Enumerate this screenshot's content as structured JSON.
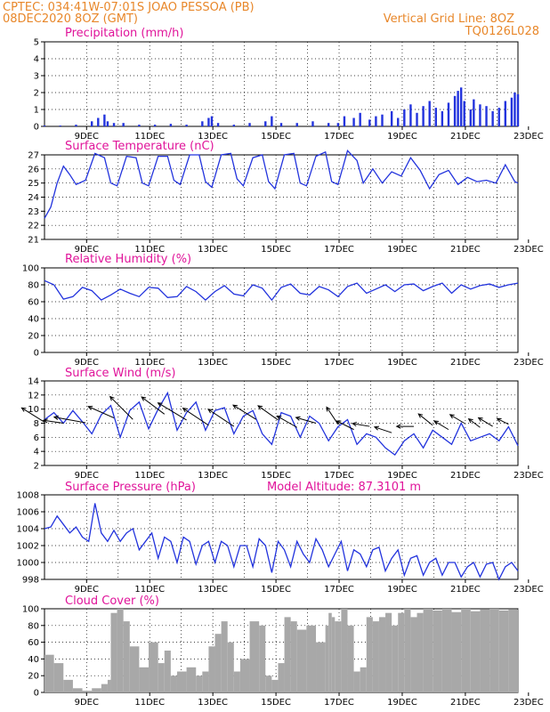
{
  "header": {
    "line1_left": "CPTEC:   034:41W-07:01S   JOAO PESSOA (PB)",
    "line2_left": "08DEC2020 8OZ (GMT)",
    "line1_right": "Vertical Grid Line: 8OZ",
    "line2_right": "TQ0126L028"
  },
  "colors": {
    "header": "#e8872a",
    "title": "#e0149a",
    "line": "#2233dd",
    "cloud": "#a8a8a8"
  },
  "x_labels": [
    "9DEC",
    "11DEC",
    "13DEC",
    "15DEC",
    "17DEC",
    "19DEC",
    "21DEC",
    "23DEC"
  ],
  "chart_data": [
    {
      "type": "bar",
      "title": "Precipitation (mm/h)",
      "ylim": [
        0,
        5
      ],
      "yticks": [
        "0",
        "1",
        "2",
        "3",
        "4",
        "5"
      ],
      "x_range_days": [
        8.0,
        23.0
      ],
      "x": [
        8.0,
        8.5,
        9.0,
        9.5,
        9.7,
        9.9,
        10.0,
        10.2,
        10.5,
        11.0,
        11.5,
        12.0,
        12.5,
        13.0,
        13.2,
        13.3,
        13.5,
        14.0,
        14.5,
        15.0,
        15.2,
        15.5,
        16.0,
        16.5,
        17.0,
        17.3,
        17.5,
        17.8,
        18.0,
        18.3,
        18.5,
        18.7,
        19.0,
        19.2,
        19.4,
        19.6,
        19.8,
        20.0,
        20.2,
        20.4,
        20.6,
        20.8,
        21.0,
        21.1,
        21.2,
        21.3,
        21.5,
        21.6,
        21.8,
        22.0,
        22.2,
        22.4,
        22.6,
        22.8,
        22.9,
        23.0
      ],
      "values": [
        0.05,
        0.05,
        0.1,
        0.3,
        0.5,
        0.7,
        0.3,
        0.2,
        0.2,
        0.1,
        0.1,
        0.15,
        0.1,
        0.3,
        0.5,
        0.6,
        0.2,
        0.1,
        0.2,
        0.3,
        0.6,
        0.2,
        0.2,
        0.3,
        0.2,
        0.2,
        0.6,
        0.5,
        0.8,
        0.4,
        0.6,
        0.7,
        0.9,
        0.5,
        1.0,
        1.3,
        0.8,
        1.2,
        1.5,
        1.1,
        0.9,
        1.4,
        1.8,
        2.1,
        2.3,
        1.5,
        1.0,
        1.6,
        1.3,
        1.2,
        0.9,
        1.1,
        1.5,
        1.7,
        2.0,
        1.9
      ]
    },
    {
      "type": "line",
      "title": "Surface Temperature (nC)",
      "ylim": [
        21,
        27
      ],
      "yticks": [
        "21",
        "22",
        "23",
        "24",
        "25",
        "26",
        "27"
      ],
      "x": [
        8.0,
        8.2,
        8.4,
        8.6,
        8.8,
        9.0,
        9.3,
        9.6,
        9.9,
        10.1,
        10.3,
        10.6,
        10.9,
        11.1,
        11.3,
        11.6,
        11.9,
        12.1,
        12.3,
        12.6,
        12.9,
        13.1,
        13.3,
        13.6,
        13.9,
        14.1,
        14.3,
        14.6,
        14.9,
        15.1,
        15.3,
        15.6,
        15.9,
        16.1,
        16.3,
        16.6,
        16.9,
        17.1,
        17.3,
        17.6,
        17.9,
        18.1,
        18.4,
        18.7,
        19.0,
        19.3,
        19.6,
        19.9,
        20.2,
        20.5,
        20.8,
        21.1,
        21.4,
        21.7,
        22.0,
        22.3,
        22.6,
        22.9,
        23.0
      ],
      "values": [
        22.5,
        23.3,
        25.0,
        26.2,
        25.6,
        24.9,
        25.2,
        27.1,
        26.8,
        25.0,
        24.8,
        26.9,
        26.8,
        25.0,
        24.8,
        26.9,
        26.9,
        25.2,
        24.9,
        27.0,
        27.0,
        25.1,
        24.7,
        27.0,
        27.1,
        25.3,
        24.8,
        26.8,
        27.0,
        25.1,
        24.6,
        27.0,
        27.1,
        25.0,
        24.8,
        26.9,
        27.2,
        25.1,
        24.9,
        27.3,
        26.6,
        25.0,
        26.0,
        25.0,
        25.8,
        25.5,
        26.8,
        25.9,
        24.6,
        25.6,
        25.9,
        24.9,
        25.4,
        25.1,
        25.2,
        25.0,
        26.3,
        25.1,
        25.0
      ]
    },
    {
      "type": "line",
      "title": "Relative Humidity (%)",
      "ylim": [
        0,
        100
      ],
      "yticks": [
        "0",
        "20",
        "40",
        "60",
        "80",
        "100"
      ],
      "x": [
        8.0,
        8.3,
        8.6,
        8.9,
        9.2,
        9.5,
        9.8,
        10.1,
        10.4,
        10.7,
        11.0,
        11.3,
        11.6,
        11.9,
        12.2,
        12.5,
        12.8,
        13.1,
        13.4,
        13.7,
        14.0,
        14.3,
        14.6,
        14.9,
        15.2,
        15.5,
        15.8,
        16.1,
        16.4,
        16.7,
        17.0,
        17.3,
        17.6,
        17.9,
        18.2,
        18.5,
        18.8,
        19.1,
        19.4,
        19.7,
        20.0,
        20.3,
        20.6,
        20.9,
        21.2,
        21.5,
        21.8,
        22.1,
        22.4,
        22.7,
        23.0
      ],
      "values": [
        85,
        80,
        63,
        66,
        77,
        73,
        62,
        68,
        75,
        70,
        66,
        77,
        76,
        65,
        66,
        78,
        72,
        62,
        72,
        79,
        69,
        67,
        80,
        76,
        62,
        77,
        81,
        70,
        68,
        78,
        74,
        66,
        78,
        82,
        70,
        75,
        80,
        72,
        80,
        81,
        73,
        78,
        82,
        70,
        80,
        75,
        79,
        81,
        77,
        80,
        82
      ]
    },
    {
      "type": "line",
      "title": "Surface Wind (m/s)",
      "ylim": [
        2,
        14
      ],
      "yticks": [
        "2",
        "4",
        "6",
        "8",
        "10",
        "12",
        "14"
      ],
      "x": [
        8.0,
        8.3,
        8.6,
        8.9,
        9.2,
        9.5,
        9.8,
        10.1,
        10.4,
        10.7,
        11.0,
        11.3,
        11.6,
        11.9,
        12.2,
        12.5,
        12.8,
        13.1,
        13.4,
        13.7,
        14.0,
        14.3,
        14.6,
        14.9,
        15.2,
        15.5,
        15.8,
        16.1,
        16.4,
        16.7,
        17.0,
        17.3,
        17.6,
        17.9,
        18.2,
        18.5,
        18.8,
        19.1,
        19.4,
        19.7,
        20.0,
        20.3,
        20.6,
        20.9,
        21.2,
        21.5,
        21.8,
        22.1,
        22.4,
        22.7,
        23.0
      ],
      "values": [
        8.5,
        9.5,
        8.0,
        9.8,
        8.2,
        6.5,
        9.2,
        10.5,
        6.0,
        9.8,
        11.0,
        7.2,
        10.0,
        12.3,
        7.0,
        9.5,
        11.0,
        7.0,
        9.8,
        10.2,
        6.5,
        9.0,
        9.8,
        6.5,
        5.0,
        9.5,
        9.0,
        6.0,
        9.0,
        8.0,
        5.5,
        7.5,
        8.5,
        5.0,
        6.5,
        6.0,
        4.5,
        3.5,
        5.5,
        6.5,
        4.5,
        7.0,
        6.0,
        5.0,
        8.0,
        5.5,
        6.0,
        6.5,
        5.5,
        7.5,
        4.8
      ],
      "wind_arrows": [
        {
          "day": 8.0,
          "u": 8,
          "v": -5
        },
        {
          "day": 8.6,
          "u": 7,
          "v": -1
        },
        {
          "day": 9.3,
          "u": 11,
          "v": -2
        },
        {
          "day": 10.2,
          "u": 9,
          "v": -4
        },
        {
          "day": 10.8,
          "u": 8,
          "v": -8
        },
        {
          "day": 11.8,
          "u": 8,
          "v": -6
        },
        {
          "day": 12.5,
          "u": 10,
          "v": -6
        },
        {
          "day": 13.2,
          "u": 9,
          "v": -6
        },
        {
          "day": 14.0,
          "u": 9,
          "v": -6
        },
        {
          "day": 14.7,
          "u": 8,
          "v": -5
        },
        {
          "day": 15.4,
          "u": 7,
          "v": -5
        },
        {
          "day": 16.0,
          "u": 7,
          "v": -4
        },
        {
          "day": 16.6,
          "u": 7,
          "v": -2
        },
        {
          "day": 17.3,
          "u": 4,
          "v": -6
        },
        {
          "day": 17.8,
          "u": 6,
          "v": -3
        },
        {
          "day": 18.3,
          "u": 6,
          "v": -1
        },
        {
          "day": 19.0,
          "u": 6,
          "v": -2
        },
        {
          "day": 19.7,
          "u": 6,
          "v": 0
        },
        {
          "day": 20.3,
          "u": 5,
          "v": -4
        },
        {
          "day": 20.8,
          "u": 5,
          "v": -3
        },
        {
          "day": 21.3,
          "u": 5,
          "v": -3
        },
        {
          "day": 21.8,
          "u": 4,
          "v": -3
        },
        {
          "day": 22.2,
          "u": 5,
          "v": -3
        },
        {
          "day": 22.7,
          "u": 4,
          "v": -2
        }
      ]
    },
    {
      "type": "line",
      "title": "Surface Pressure (hPa)",
      "annotation": "Model Altitude: 87.3101 m",
      "ylim": [
        998,
        1008
      ],
      "yticks": [
        "998",
        "1000",
        "1002",
        "1004",
        "1006",
        "1008"
      ],
      "x": [
        8.0,
        8.2,
        8.4,
        8.6,
        8.8,
        9.0,
        9.2,
        9.4,
        9.6,
        9.8,
        10.0,
        10.2,
        10.4,
        10.6,
        10.8,
        11.0,
        11.2,
        11.4,
        11.6,
        11.8,
        12.0,
        12.2,
        12.4,
        12.6,
        12.8,
        13.0,
        13.2,
        13.4,
        13.6,
        13.8,
        14.0,
        14.2,
        14.4,
        14.6,
        14.8,
        15.0,
        15.2,
        15.4,
        15.6,
        15.8,
        16.0,
        16.2,
        16.4,
        16.6,
        16.8,
        17.0,
        17.2,
        17.4,
        17.6,
        17.8,
        18.0,
        18.2,
        18.4,
        18.6,
        18.8,
        19.0,
        19.2,
        19.4,
        19.6,
        19.8,
        20.0,
        20.2,
        20.4,
        20.6,
        20.8,
        21.0,
        21.2,
        21.4,
        21.6,
        21.8,
        22.0,
        22.2,
        22.4,
        22.6,
        22.8,
        23.0
      ],
      "values": [
        1004,
        1004.2,
        1005.5,
        1004.5,
        1003.5,
        1004.2,
        1003,
        1002.5,
        1007,
        1003.5,
        1002.5,
        1003.8,
        1002.5,
        1003.5,
        1004,
        1001.5,
        1002.5,
        1003.5,
        1000.5,
        1003,
        1002.5,
        1000,
        1003,
        1002.5,
        999.8,
        1002,
        1002.5,
        1000,
        1002.5,
        1002,
        999.5,
        1002,
        1002,
        999.5,
        1002.8,
        1002,
        998.8,
        1002.5,
        1001.5,
        999.5,
        1002.5,
        1001,
        1000,
        1002.8,
        1001.5,
        999.5,
        1001,
        1002.5,
        999,
        1001.5,
        1001,
        999.5,
        1001.5,
        1001.8,
        999,
        1000.5,
        1001.5,
        998.5,
        1000.5,
        1000.8,
        998.5,
        1000,
        1000.5,
        998.5,
        1000,
        1000,
        998.3,
        999.5,
        1000,
        998.3,
        999.8,
        1000,
        998,
        999.5,
        1000,
        999
      ]
    },
    {
      "type": "area",
      "title": "Cloud Cover (%)",
      "ylim": [
        0,
        100
      ],
      "yticks": [
        "0",
        "20",
        "40",
        "60",
        "80",
        "100"
      ],
      "x": [
        8.0,
        8.3,
        8.6,
        8.9,
        9.2,
        9.5,
        9.8,
        10.0,
        10.1,
        10.3,
        10.5,
        10.7,
        11.0,
        11.3,
        11.6,
        11.8,
        12.0,
        12.2,
        12.5,
        12.8,
        13.0,
        13.2,
        13.4,
        13.6,
        13.8,
        14.0,
        14.2,
        14.5,
        14.8,
        15.0,
        15.2,
        15.4,
        15.6,
        15.8,
        16.0,
        16.3,
        16.6,
        16.9,
        17.0,
        17.1,
        17.2,
        17.4,
        17.6,
        17.8,
        18.0,
        18.2,
        18.4,
        18.6,
        18.8,
        19.0,
        19.2,
        19.4,
        19.6,
        19.8,
        20.0,
        20.3,
        20.6,
        20.9,
        21.2,
        21.5,
        21.8,
        22.1,
        22.4,
        22.7,
        23.0
      ],
      "values": [
        45,
        35,
        15,
        5,
        2,
        5,
        10,
        15,
        95,
        100,
        85,
        55,
        30,
        60,
        35,
        50,
        20,
        25,
        30,
        20,
        25,
        55,
        70,
        85,
        60,
        25,
        40,
        85,
        80,
        20,
        15,
        35,
        90,
        85,
        75,
        80,
        60,
        80,
        95,
        90,
        85,
        100,
        80,
        25,
        30,
        90,
        85,
        90,
        95,
        80,
        95,
        100,
        90,
        95,
        100,
        98,
        100,
        96,
        100,
        97,
        99,
        100,
        98,
        99,
        100
      ]
    }
  ]
}
